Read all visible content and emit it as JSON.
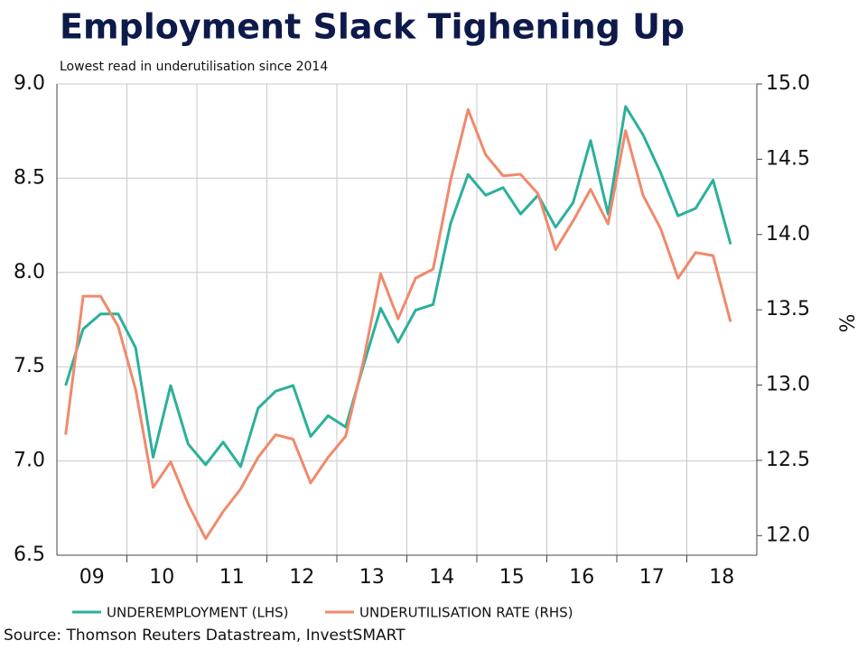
{
  "chart_data": {
    "type": "line",
    "title": "Employment Slack Tighening Up",
    "subtitle": "Lowest read in underutilisation since 2014",
    "source": "Source: Thomson Reuters Datastream, InvestSMART",
    "y2_label": "%",
    "x": [
      2009.125,
      2009.375,
      2009.625,
      2009.875,
      2010.125,
      2010.375,
      2010.625,
      2010.875,
      2011.125,
      2011.375,
      2011.625,
      2011.875,
      2012.125,
      2012.375,
      2012.625,
      2012.875,
      2013.125,
      2013.375,
      2013.625,
      2013.875,
      2014.125,
      2014.375,
      2014.625,
      2014.875,
      2015.125,
      2015.375,
      2015.625,
      2015.875,
      2016.125,
      2016.375,
      2016.625,
      2016.875,
      2017.125,
      2017.375,
      2017.625,
      2017.875,
      2018.125,
      2018.375,
      2018.625
    ],
    "series": [
      {
        "name": "UNDEREMPLOYMENT (LHS)",
        "color": "#2bb09a",
        "values": [
          7.4,
          7.7,
          7.78,
          7.78,
          7.6,
          7.02,
          7.4,
          7.09,
          6.98,
          7.1,
          6.97,
          7.28,
          7.37,
          7.4,
          7.13,
          7.24,
          7.18,
          7.5,
          7.81,
          7.63,
          7.8,
          7.83,
          8.26,
          8.52,
          8.41,
          8.45,
          8.31,
          8.41,
          8.24,
          8.37,
          8.7,
          8.31,
          8.88,
          8.73,
          8.53,
          8.3,
          8.34,
          8.49,
          8.15
        ]
      },
      {
        "name": "UNDERUTILISATION RATE (RHS)",
        "color": "#f0896c",
        "axis": "y2",
        "values": [
          12.67,
          13.59,
          13.59,
          13.39,
          12.97,
          12.32,
          12.49,
          12.21,
          11.98,
          12.16,
          12.31,
          12.52,
          12.67,
          12.64,
          12.35,
          12.52,
          12.66,
          13.15,
          13.74,
          13.44,
          13.71,
          13.77,
          14.36,
          14.83,
          14.53,
          14.39,
          14.4,
          14.27,
          13.9,
          14.09,
          14.3,
          14.07,
          14.69,
          14.26,
          14.04,
          13.71,
          13.88,
          13.86,
          13.42
        ]
      }
    ],
    "xlim": [
      2009,
      2019
    ],
    "xticks": [
      2010,
      2011,
      2012,
      2013,
      2014,
      2015,
      2016,
      2017,
      2018
    ],
    "xtick_labels": [
      {
        "value": 2009.5,
        "label": "09"
      },
      {
        "value": 2010.5,
        "label": "10"
      },
      {
        "value": 2011.5,
        "label": "11"
      },
      {
        "value": 2012.5,
        "label": "12"
      },
      {
        "value": 2013.5,
        "label": "13"
      },
      {
        "value": 2014.5,
        "label": "14"
      },
      {
        "value": 2015.5,
        "label": "15"
      },
      {
        "value": 2016.5,
        "label": "16"
      },
      {
        "value": 2017.5,
        "label": "17"
      },
      {
        "value": 2018.5,
        "label": "18"
      }
    ],
    "ylim": [
      6.5,
      9.0
    ],
    "yticks": [
      {
        "value": 6.5,
        "label": "6.5"
      },
      {
        "value": 7,
        "label": "7.0"
      },
      {
        "value": 7.5,
        "label": "7.5"
      },
      {
        "value": 8,
        "label": "8.0"
      },
      {
        "value": 8.5,
        "label": "8.5"
      },
      {
        "value": 9,
        "label": "9.0"
      }
    ],
    "y2lim": [
      11.87,
      15.0
    ],
    "y2ticks": [
      {
        "value": 12,
        "label": "12.0"
      },
      {
        "value": 12.5,
        "label": "12.5"
      },
      {
        "value": 13,
        "label": "13.0"
      },
      {
        "value": 13.5,
        "label": "13.5"
      },
      {
        "value": 14,
        "label": "14.0"
      },
      {
        "value": 14.5,
        "label": "14.5"
      },
      {
        "value": 15,
        "label": "15.0"
      }
    ],
    "grid": true
  }
}
